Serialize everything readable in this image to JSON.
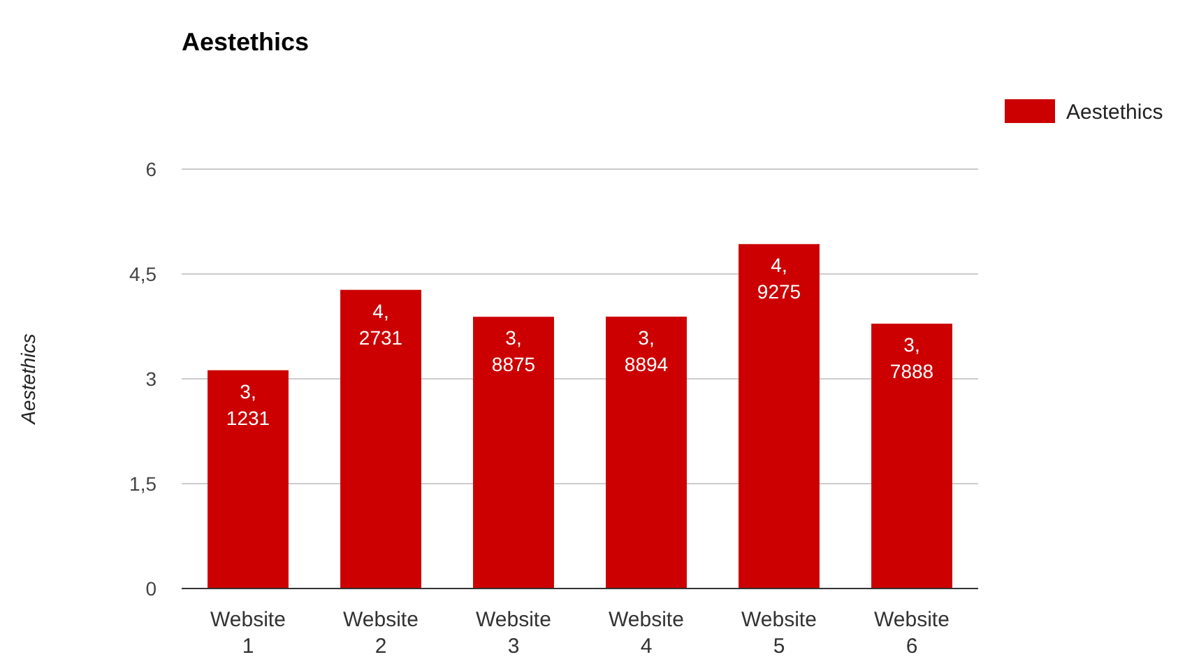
{
  "chart_data": {
    "type": "bar",
    "title": "Aestethics",
    "ylabel": "Aestethics",
    "categories": [
      "Website 1",
      "Website 2",
      "Website 3",
      "Website 4",
      "Website 5",
      "Website 6"
    ],
    "series": [
      {
        "name": "Aestethics",
        "color": "#cc0000",
        "values": [
          3.1231,
          4.2731,
          3.8875,
          3.8894,
          4.9275,
          3.7888
        ],
        "value_labels": [
          "3,1231",
          "4,2731",
          "3,8875",
          "3,8894",
          "4,9275",
          "3,7888"
        ]
      }
    ],
    "ylim": [
      0,
      6
    ],
    "yticks": [
      0,
      {
        "value": 1.5,
        "label": "1,5"
      },
      3,
      {
        "value": 4.5,
        "label": "4,5"
      },
      6
    ],
    "grid": "y",
    "legend": "top right"
  }
}
